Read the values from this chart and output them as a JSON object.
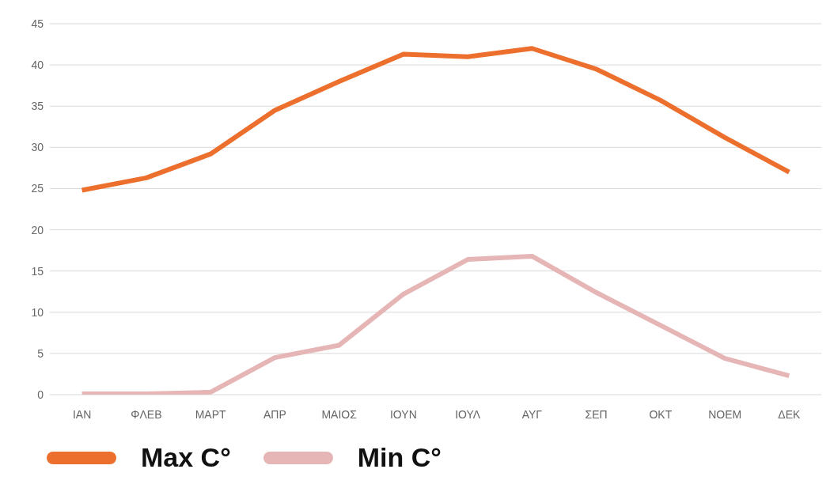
{
  "chart_data": {
    "type": "line",
    "categories": [
      "ΙΑΝ",
      "ΦΛΕΒ",
      "ΜΑΡΤ",
      "ΑΠΡ",
      "ΜΑΙΟΣ",
      "ΙΟΥΝ",
      "ΙΟΥΛ",
      "ΑΥΓ",
      "ΣΕΠ",
      "ΟΚΤ",
      "ΝΟΕΜ",
      "ΔΕΚ"
    ],
    "series": [
      {
        "name": "Min C°",
        "color": "#e6b5b5",
        "values": [
          0.1,
          0.1,
          0.3,
          4.5,
          6.0,
          12.2,
          16.4,
          16.8,
          12.4,
          8.4,
          4.4,
          2.3
        ]
      },
      {
        "name": "Max C°",
        "color": "#ec6f2d",
        "values": [
          24.8,
          26.3,
          29.2,
          34.5,
          38.0,
          41.3,
          41.0,
          42.0,
          39.5,
          35.7,
          31.2,
          27.0
        ]
      }
    ],
    "ylim": [
      0,
      45
    ],
    "yticks": [
      0,
      5,
      10,
      15,
      20,
      25,
      30,
      35,
      40,
      45
    ],
    "grid": "y",
    "legend": "bottom",
    "marker": "none",
    "line_style": "solid"
  }
}
